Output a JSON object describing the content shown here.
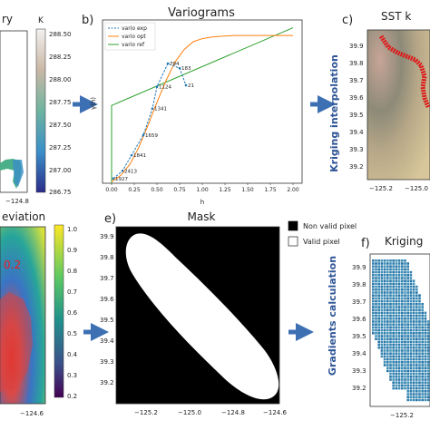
{
  "colors": {
    "arrow": "#3d6fb3",
    "side_label": "#2f5597",
    "vario_exp": "#1f77b4",
    "vario_opt": "#ff7f0e",
    "vario_ref": "#2ca02c",
    "mask_fill": "#000000",
    "valid_fill": "#ffffff",
    "red_path": "#dd1a1a",
    "blue_pixels": "#2a63a8"
  },
  "panels": {
    "a": {
      "title": "ry",
      "cbar_label": "K",
      "cbar_ticks": [
        "288.50",
        "288.25",
        "288.00",
        "287.75",
        "287.50",
        "287.25",
        "287.00",
        "286.75"
      ],
      "x_tick": "−124.8"
    },
    "b": {
      "letter": "b)",
      "title": "Variograms",
      "xlabel": "h",
      "ylabel": "γ(h)",
      "x_ticks": [
        "0.00",
        "0.25",
        "0.50",
        "0.75",
        "1.00",
        "1.25",
        "1.50",
        "1.75",
        "2.00"
      ],
      "point_labels": [
        "1927",
        "2413",
        "1841",
        "1659",
        "1341",
        "1124",
        "794",
        "183",
        "21"
      ]
    },
    "c": {
      "letter": "c)",
      "title": "SST k",
      "side_label": "Kriging interpolation",
      "y_ticks": [
        "39.9",
        "39.8",
        "39.7",
        "39.6",
        "39.5",
        "39.4",
        "39.3",
        "39.2"
      ],
      "x_ticks": [
        "−125.2",
        "−125.0"
      ]
    },
    "d": {
      "title": "eviation",
      "annotation": "0.2",
      "cbar_ticks": [
        "1.0",
        "0.9",
        "0.8",
        "0.7",
        "0.6",
        "0.5",
        "0.4",
        "0.3",
        "0.2"
      ],
      "x_tick": "−124.6"
    },
    "e": {
      "letter": "e)",
      "title": "Mask",
      "side_label": "Gradients calculation",
      "y_ticks": [
        "39.9",
        "39.8",
        "39.7",
        "39.6",
        "39.5",
        "39.4",
        "39.3",
        "39.2"
      ],
      "x_ticks": [
        "−125.2",
        "−125.0",
        "−124.8",
        "−124.6"
      ],
      "legend": [
        {
          "label": "Non valid pixel"
        },
        {
          "label": "Valid pixel"
        }
      ]
    },
    "f": {
      "letter": "f)",
      "title": "Kriging",
      "y_ticks": [
        "39.9",
        "39.8",
        "39.7",
        "39.6",
        "39.5",
        "39.4",
        "39.3",
        "39.2"
      ],
      "x_tick": "−125.2"
    }
  },
  "chart_data": [
    {
      "type": "line",
      "title": "Variograms",
      "xlabel": "h",
      "ylabel": "γ(h)",
      "xlim": [
        -0.1,
        2.1
      ],
      "ylim": [
        0,
        1.05
      ],
      "series": [
        {
          "name": "vario exp",
          "x": [
            0.02,
            0.12,
            0.22,
            0.35,
            0.45,
            0.5,
            0.62,
            0.75,
            0.82
          ],
          "y": [
            0.03,
            0.08,
            0.18,
            0.31,
            0.48,
            0.62,
            0.77,
            0.74,
            0.63
          ],
          "labels": [
            "1927",
            "2413",
            "1841",
            "1659",
            "1341",
            "1124",
            "794",
            "183",
            "21"
          ]
        },
        {
          "name": "vario opt",
          "x": [
            0,
            0.1,
            0.2,
            0.3,
            0.4,
            0.5,
            0.6,
            0.7,
            0.8,
            0.9,
            1.0,
            1.1,
            1.2,
            1.35,
            1.5,
            1.75,
            2.0
          ],
          "y": [
            0.01,
            0.05,
            0.12,
            0.23,
            0.37,
            0.52,
            0.66,
            0.78,
            0.86,
            0.91,
            0.93,
            0.94,
            0.945,
            0.95,
            0.95,
            0.95,
            0.95
          ]
        },
        {
          "name": "vario ref",
          "x": [
            0,
            0,
            2.0
          ],
          "y": [
            0,
            0.5,
            1.0
          ]
        }
      ]
    },
    {
      "type": "heatmap",
      "title": "",
      "colorbar_label": "K",
      "colorbar_range": [
        286.75,
        288.5
      ],
      "colorbar_ticks": [
        288.5,
        288.25,
        288.0,
        287.75,
        287.5,
        287.25,
        287.0,
        286.75
      ]
    },
    {
      "type": "heatmap",
      "title": "SST k",
      "ylim": [
        39.2,
        39.9
      ],
      "x_ticks": [
        -125.2,
        -125.0
      ]
    },
    {
      "type": "heatmap",
      "colorbar_range": [
        0.2,
        1.0
      ],
      "colorbar_ticks": [
        1.0,
        0.9,
        0.8,
        0.7,
        0.6,
        0.5,
        0.4,
        0.3,
        0.2
      ]
    },
    {
      "type": "heatmap",
      "title": "Mask",
      "ylim": [
        39.2,
        39.9
      ],
      "x_ticks": [
        -125.2,
        -125.0,
        -124.8,
        -124.6
      ],
      "legend": [
        "Non valid pixel",
        "Valid pixel"
      ]
    },
    {
      "type": "heatmap",
      "title": "Kriging",
      "ylim": [
        39.2,
        39.9
      ],
      "x_ticks": [
        -125.2
      ]
    }
  ]
}
